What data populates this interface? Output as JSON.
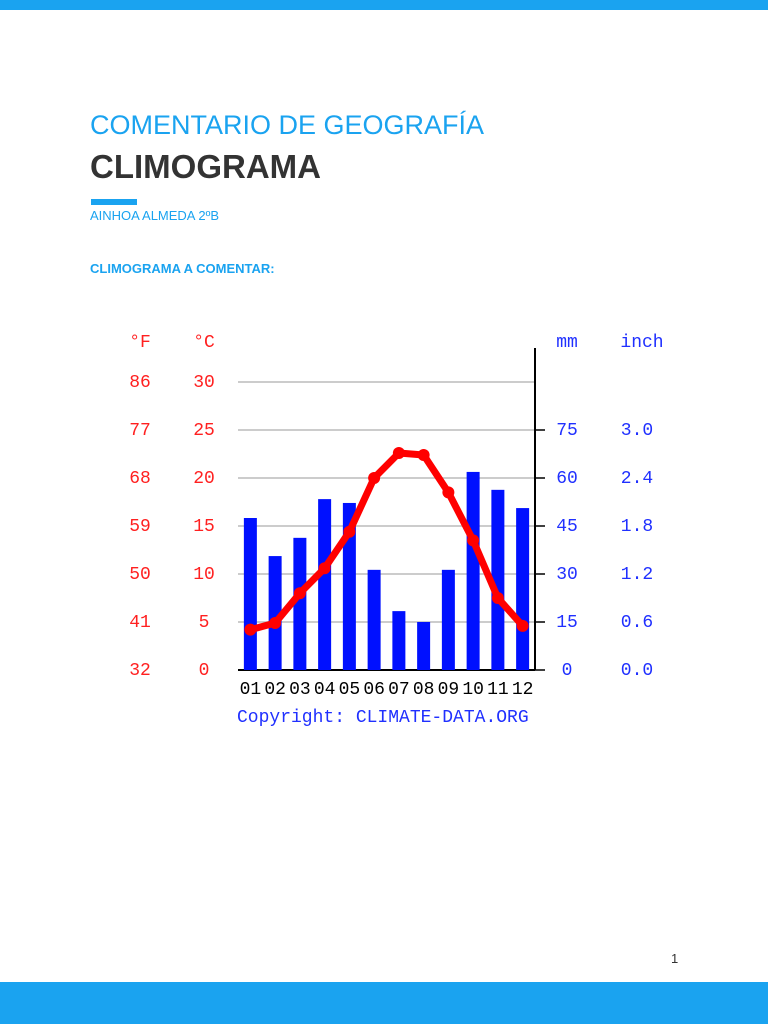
{
  "header": {
    "kicker": "COMENTARIO DE GEOGRAFÍA",
    "title": "CLIMOGRAMA",
    "author": "AINHOA ALMEDA 2ºB"
  },
  "section_heading": "CLIMOGRAMA A COMENTAR:",
  "page_number": "1",
  "chart_data": {
    "type": "climograph",
    "source": "Copyright: CLIMATE-DATA.ORG",
    "ylabel": "°C",
    "ylabel_f": "°F",
    "y2label": "mm",
    "y2label_inch": "inch",
    "categories": [
      "01",
      "02",
      "03",
      "04",
      "05",
      "06",
      "07",
      "08",
      "09",
      "10",
      "11",
      "12"
    ],
    "series": [
      {
        "type": "bar",
        "axis": "y2",
        "color": "#0010ff",
        "values": [
          47.5,
          35.6,
          41.3,
          53.4,
          52.2,
          31.3,
          18.4,
          15,
          31.3,
          61.9,
          56.3,
          50.6
        ]
      },
      {
        "type": "line",
        "color": "#ff0000",
        "values": [
          4.2,
          4.9,
          8.0,
          10.6,
          14.4,
          20.0,
          22.6,
          22.4,
          18.5,
          13.5,
          7.5,
          4.6
        ]
      }
    ],
    "ylim": [
      0,
      30
    ],
    "yticks": [
      0,
      5,
      10,
      15,
      20,
      25,
      30
    ],
    "yticks_f": [
      {
        "value": 0,
        "label": "32"
      },
      {
        "value": 5,
        "label": "41"
      },
      {
        "value": 10,
        "label": "50"
      },
      {
        "value": 15,
        "label": "59"
      },
      {
        "value": 20,
        "label": "68"
      },
      {
        "value": 25,
        "label": "77"
      },
      {
        "value": 30,
        "label": "86"
      }
    ],
    "y2lim": [
      0,
      90
    ],
    "y2ticks": [
      0,
      15,
      30,
      45,
      60,
      75
    ],
    "y2ticks_inch": [
      {
        "value": 0,
        "label": "0.0"
      },
      {
        "value": 15,
        "label": "0.6"
      },
      {
        "value": 30,
        "label": "1.2"
      },
      {
        "value": 45,
        "label": "1.8"
      },
      {
        "value": 60,
        "label": "2.4"
      },
      {
        "value": 75,
        "label": "3.0"
      }
    ],
    "grid": true
  }
}
